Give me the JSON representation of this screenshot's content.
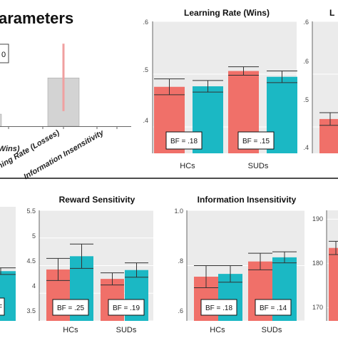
{
  "figure": {
    "heading": "arameters",
    "sep_color": "#1a1a1a"
  },
  "colors": {
    "hc": "#f07069",
    "sud": "#1bb8c4",
    "panel_bg": "#ebebeb",
    "grid": "#ffffff",
    "ref_bar": "#d3d3d3",
    "ref_err": "#f0a0a0"
  },
  "chart_data": [
    {
      "id": "overview",
      "type": "bar",
      "title": "arameters",
      "categories": [
        "(Wins)",
        "Learning Rate (Losses)",
        "Information Insensitivity"
      ],
      "values": [
        0.12,
        0.48,
        0.0
      ],
      "error_high": [
        null,
        0.82,
        null
      ],
      "error_low": [
        null,
        0.15,
        null
      ],
      "ylim": [
        0,
        0.9
      ],
      "stray_label": "0"
    },
    {
      "id": "learning-rate-wins",
      "type": "bar",
      "title": "Learning Rate (Wins)",
      "categories": [
        "HCs",
        "SUDs"
      ],
      "series": [
        {
          "values": [
            0.476,
            0.506
          ],
          "err": [
            0.015,
            0.008
          ]
        },
        {
          "values": [
            0.477,
            0.495
          ],
          "err": [
            0.011,
            0.011
          ]
        }
      ],
      "ylim": [
        0.35,
        0.6
      ],
      "yticks": [
        0.4,
        0.5,
        0.6
      ],
      "ytick_labels": [
        ".4",
        ".5",
        ".6"
      ],
      "bf": [
        "BF = .18",
        "BF = .15"
      ]
    },
    {
      "id": "partial-right",
      "type": "bar",
      "title": "L",
      "categories": [
        ""
      ],
      "series": [
        {
          "values": [
            0.415
          ],
          "err": [
            0.012
          ]
        }
      ],
      "ylim": [
        0.35,
        0.6
      ],
      "yticks": [
        0.4,
        0.5,
        0.6
      ],
      "ytick_labels": [
        ".4",
        ".5",
        ".6"
      ]
    },
    {
      "id": "partial-left",
      "type": "bar",
      "title": "",
      "categories": [
        ""
      ],
      "series": [
        {
          "values": [
            4.4
          ],
          "err": [
            0.06
          ]
        }
      ],
      "ylim": [
        3.5,
        5.5
      ],
      "bf": [
        "F"
      ]
    },
    {
      "id": "reward-sensitivity",
      "type": "bar",
      "title": "Reward Sensitivity",
      "categories": [
        "HCs",
        "SUDs"
      ],
      "series": [
        {
          "values": [
            4.43,
            4.26
          ],
          "err": [
            0.2,
            0.11
          ]
        },
        {
          "values": [
            4.67,
            4.42
          ],
          "err": [
            0.22,
            0.13
          ]
        }
      ],
      "ylim": [
        3.5,
        5.5
      ],
      "yticks": [
        3.5,
        4,
        4.5,
        5,
        5.5
      ],
      "ytick_labels": [
        "3.5",
        "4",
        "4.5",
        "5",
        "5.5"
      ],
      "bf": [
        "BF = .25",
        "BF = .19"
      ]
    },
    {
      "id": "information-insensitivity",
      "type": "bar",
      "title": "Information Insensitivity",
      "categories": [
        "HCs",
        "SUDs"
      ],
      "series": [
        {
          "values": [
            0.76,
            0.815
          ],
          "err": [
            0.04,
            0.03
          ]
        },
        {
          "values": [
            0.77,
            0.83
          ],
          "err": [
            0.03,
            0.02
          ]
        }
      ],
      "ylim": [
        0.6,
        1.0
      ],
      "yticks": [
        0.6,
        0.8,
        1.0
      ],
      "ytick_labels": [
        ".6",
        ".8",
        "1.0"
      ],
      "bf": [
        "BF = .18",
        "BF = .14"
      ]
    },
    {
      "id": "partial-bottom-right",
      "type": "bar",
      "title": "",
      "categories": [
        ""
      ],
      "series": [
        {
          "values": [
            183.5
          ],
          "err": [
            1.5
          ]
        }
      ],
      "ylim": [
        167,
        192
      ],
      "yticks": [
        170,
        180,
        190
      ],
      "ytick_labels": [
        "170",
        "180",
        "190"
      ]
    }
  ]
}
